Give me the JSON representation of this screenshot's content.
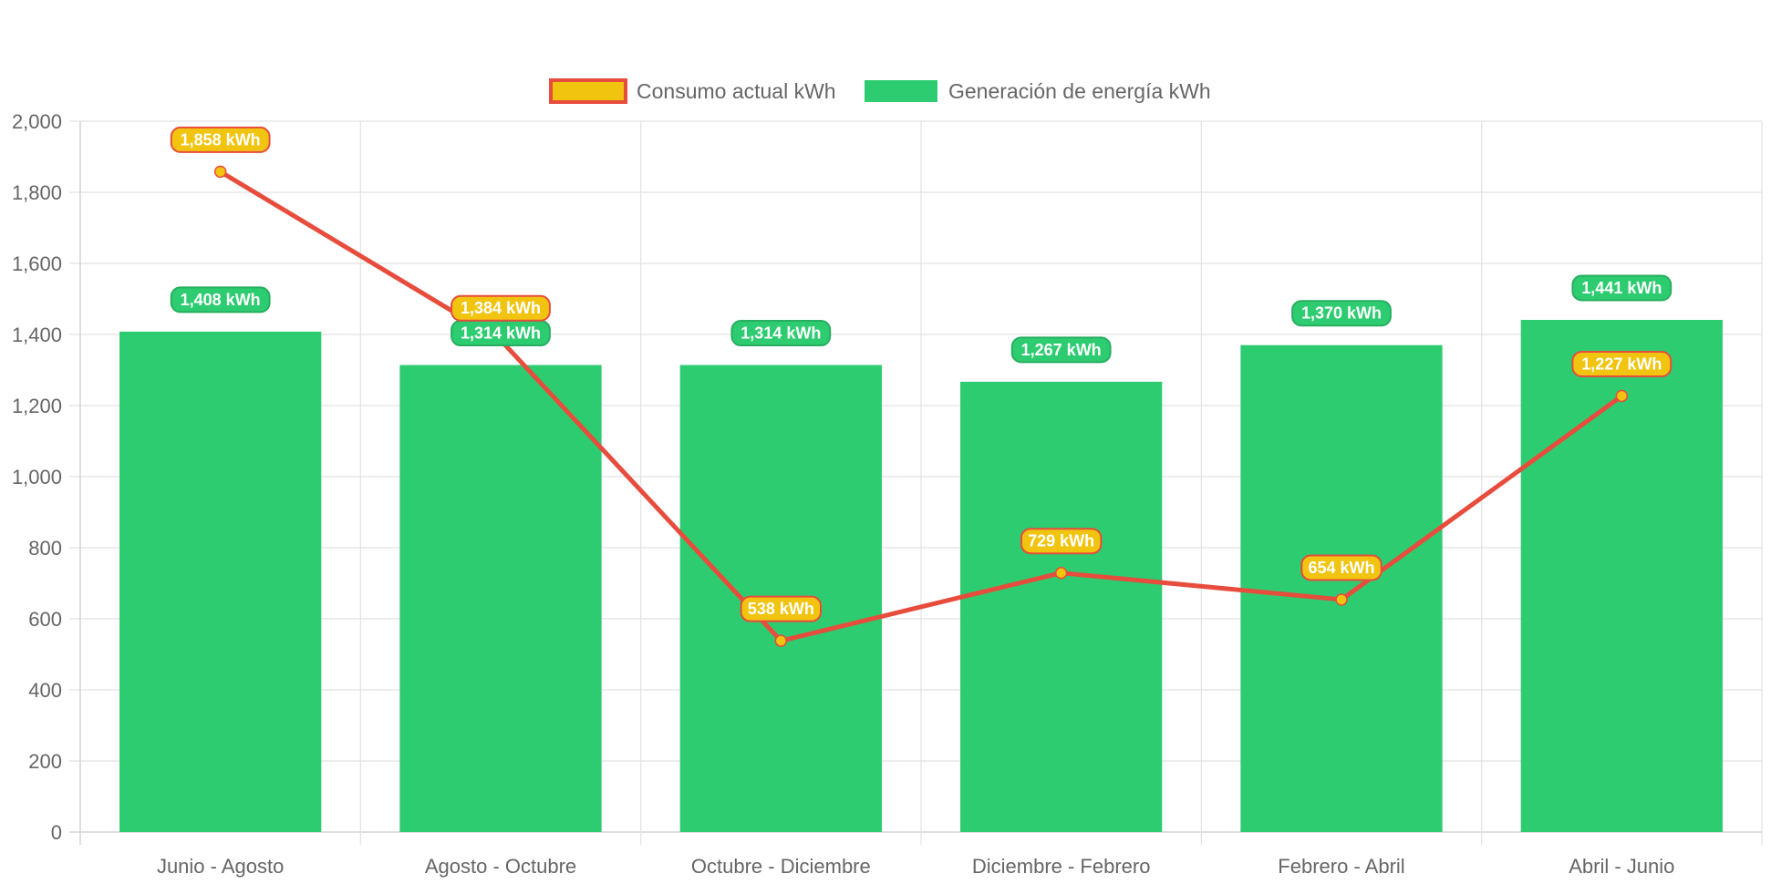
{
  "chart_data": {
    "type": "bar",
    "categories": [
      "Junio - Agosto",
      "Agosto - Octubre",
      "Octubre - Diciembre",
      "Diciembre - Febrero",
      "Febrero - Abril",
      "Abril - Junio"
    ],
    "series": [
      {
        "name": "Consumo actual kWh",
        "type": "line",
        "values": [
          1858,
          1384,
          538,
          729,
          654,
          1227
        ],
        "labels": [
          "1,858 kWh",
          "1,384 kWh",
          "538 kWh",
          "729 kWh",
          "654 kWh",
          "1,227 kWh"
        ],
        "color": "#e74c3c",
        "point_color": "#f1c40f"
      },
      {
        "name": "Generación de energía kWh",
        "type": "bar",
        "values": [
          1408,
          1314,
          1314,
          1267,
          1370,
          1441
        ],
        "labels": [
          "1,408 kWh",
          "1,314 kWh",
          "1,314 kWh",
          "1,267 kWh",
          "1,370 kWh",
          "1,441 kWh"
        ],
        "color": "#2ecc71"
      }
    ],
    "y_ticks": [
      "0",
      "200",
      "400",
      "600",
      "800",
      "1,000",
      "1,200",
      "1,400",
      "1,600",
      "1,800",
      "2,000"
    ],
    "ylim": [
      0,
      2000
    ],
    "grid": true,
    "legend_position": "top",
    "title": "",
    "xlabel": "",
    "ylabel": ""
  }
}
